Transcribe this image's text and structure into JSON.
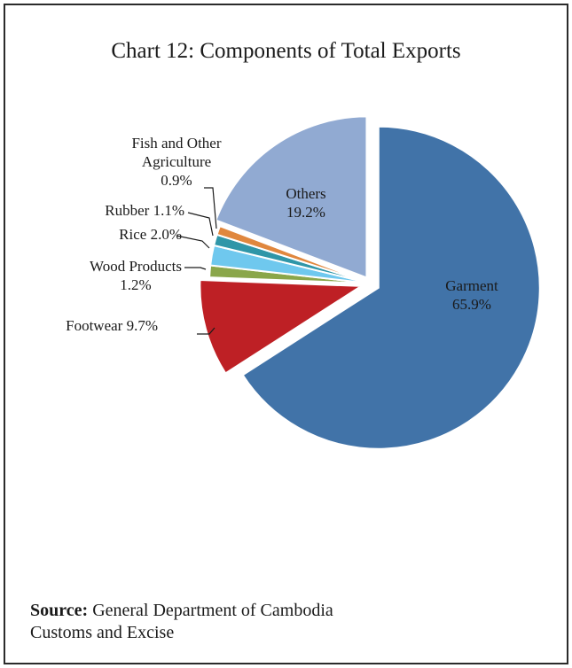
{
  "chart_data": {
    "type": "pie",
    "title": "Chart 12: Components of Total Exports",
    "slices": [
      {
        "name": "Garment",
        "value": 65.9,
        "label_lines": [
          "Garment",
          "65.9%"
        ],
        "color": "#4173a8"
      },
      {
        "name": "Footwear",
        "value": 9.7,
        "label_lines": [
          "Footwear 9.7%"
        ],
        "color": "#be2025"
      },
      {
        "name": "Wood Products",
        "value": 1.2,
        "label_lines": [
          "Wood Products",
          "1.2%"
        ],
        "color": "#8aa64a"
      },
      {
        "name": "Rice",
        "value": 2.0,
        "label_lines": [
          "Rice 2.0%"
        ],
        "color": "#6fc8ee"
      },
      {
        "name": "Rubber",
        "value": 1.1,
        "label_lines": [
          "Rubber 1.1%"
        ],
        "color": "#2f96a8"
      },
      {
        "name": "Fish and Other Agriculture",
        "value": 0.9,
        "label_lines": [
          "Fish and Other",
          "Agriculture",
          "0.9%"
        ],
        "color": "#e0873e"
      },
      {
        "name": "Others",
        "value": 19.2,
        "label_lines": [
          "Others",
          "19.2%"
        ],
        "color": "#91aad2"
      }
    ]
  },
  "source": {
    "label": "Source:",
    "line1": " General Department of Cambodia",
    "line2": "Customs and Excise"
  }
}
